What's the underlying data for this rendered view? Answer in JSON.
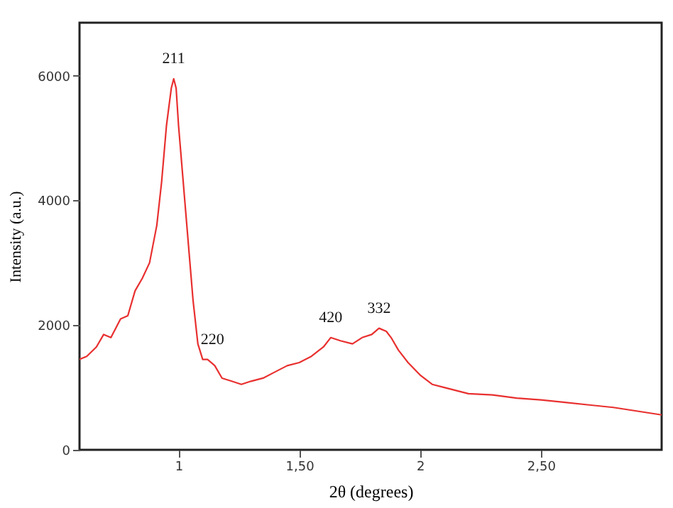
{
  "chart_data": {
    "type": "line",
    "xlabel": "2θ (degrees)",
    "ylabel": "Intensity (a.u.)",
    "xlim": [
      0.59,
      3.0
    ],
    "ylim": [
      0,
      6850
    ],
    "xticks": [
      1,
      {
        "value": 1.5,
        "label": "1,50"
      },
      2,
      {
        "value": 2.5,
        "label": "2,50"
      }
    ],
    "yticks": [
      0,
      2000,
      4000,
      6000
    ],
    "grid": false,
    "marker": "none",
    "line_style": "solid",
    "series": [
      {
        "color": "#e8302f",
        "x": [
          0.59,
          0.62,
          0.66,
          0.69,
          0.72,
          0.76,
          0.79,
          0.82,
          0.85,
          0.88,
          0.91,
          0.93,
          0.95,
          0.97,
          0.98,
          0.99,
          1.0,
          1.03,
          1.06,
          1.08,
          1.1,
          1.12,
          1.15,
          1.18,
          1.22,
          1.26,
          1.3,
          1.35,
          1.4,
          1.45,
          1.5,
          1.55,
          1.6,
          1.63,
          1.67,
          1.72,
          1.76,
          1.8,
          1.83,
          1.86,
          1.88,
          1.91,
          1.95,
          2.0,
          2.05,
          2.1,
          2.2,
          2.3,
          2.4,
          2.5,
          2.6,
          2.7,
          2.8,
          2.9,
          3.0
        ],
        "values": [
          1450,
          1500,
          1650,
          1850,
          1800,
          2100,
          2150,
          2550,
          2750,
          3000,
          3600,
          4300,
          5200,
          5800,
          5950,
          5800,
          5200,
          3800,
          2400,
          1700,
          1450,
          1450,
          1350,
          1150,
          1100,
          1050,
          1100,
          1150,
          1250,
          1350,
          1400,
          1500,
          1650,
          1800,
          1750,
          1700,
          1800,
          1850,
          1950,
          1900,
          1800,
          1600,
          1400,
          1200,
          1050,
          1000,
          900,
          880,
          830,
          800,
          760,
          720,
          680,
          620,
          560
        ]
      }
    ],
    "annotations": [
      {
        "text": "211",
        "x": 0.98,
        "y": 5950
      },
      {
        "text": "220",
        "x": 1.14,
        "y": 1450
      },
      {
        "text": "420",
        "x": 1.63,
        "y": 1800
      },
      {
        "text": "332",
        "x": 1.83,
        "y": 1950
      }
    ]
  }
}
